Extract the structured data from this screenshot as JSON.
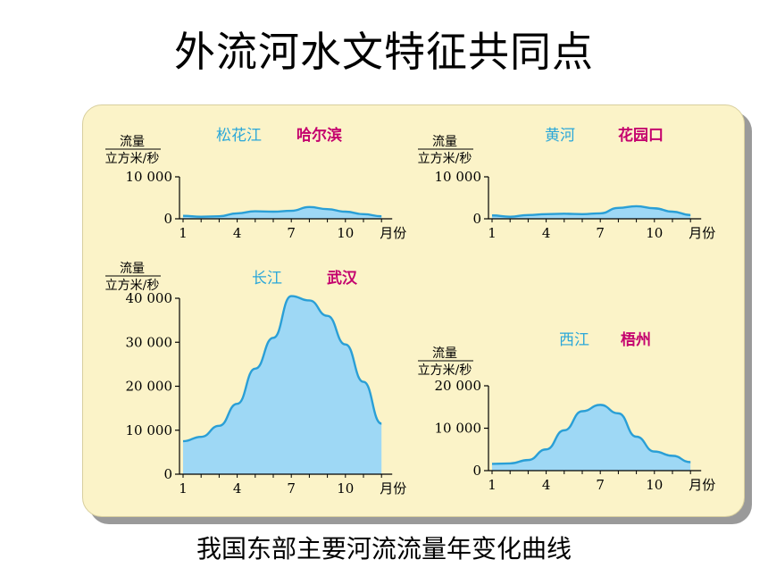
{
  "title": "外流河水文特征共同点",
  "caption": "我国东部主要河流流量年变化曲线",
  "colors": {
    "fill": "#9ed8f5",
    "line": "#2a9fd6",
    "river": "#2aa7d9",
    "station": "#c4006e",
    "panel": "#fbf3c8"
  },
  "chart_data": [
    {
      "type": "area",
      "river": "松花江",
      "station": "哈尔滨",
      "ylabel_top": "流量",
      "ylabel_bottom": "立方米/秒",
      "y_ticks": [
        "10 000",
        "0"
      ],
      "ylim": [
        0,
        10000
      ],
      "x_ticks": [
        "1",
        "4",
        "7",
        "10"
      ],
      "x_unit": "月份",
      "x": [
        1,
        2,
        3,
        4,
        5,
        6,
        7,
        8,
        9,
        10,
        11,
        12
      ],
      "values": [
        700,
        500,
        600,
        1300,
        1800,
        1700,
        1900,
        2800,
        2300,
        1700,
        1100,
        600
      ]
    },
    {
      "type": "area",
      "river": "黄河",
      "station": "花园口",
      "ylabel_top": "流量",
      "ylabel_bottom": "立方米/秒",
      "y_ticks": [
        "10 000",
        "0"
      ],
      "ylim": [
        0,
        10000
      ],
      "x_ticks": [
        "1",
        "4",
        "7",
        "10"
      ],
      "x_unit": "月份",
      "x": [
        1,
        2,
        3,
        4,
        5,
        6,
        7,
        8,
        9,
        10,
        11,
        12
      ],
      "values": [
        800,
        500,
        900,
        1100,
        1200,
        1100,
        1300,
        2600,
        3000,
        2500,
        1700,
        900
      ]
    },
    {
      "type": "area",
      "river": "长江",
      "station": "武汉",
      "ylabel_top": "流量",
      "ylabel_bottom": "立方米/秒",
      "y_ticks": [
        "40 000",
        "30 000",
        "20 000",
        "10 000",
        "0"
      ],
      "ylim": [
        0,
        40000
      ],
      "x_ticks": [
        "1",
        "4",
        "7",
        "10"
      ],
      "x_unit": "月份",
      "x": [
        1,
        2,
        3,
        4,
        5,
        6,
        7,
        8,
        9,
        10,
        11,
        12
      ],
      "values": [
        7500,
        8500,
        11000,
        16000,
        24000,
        31000,
        40500,
        39500,
        36000,
        29500,
        21000,
        11500
      ]
    },
    {
      "type": "area",
      "river": "西江",
      "station": "梧州",
      "ylabel_top": "流量",
      "ylabel_bottom": "立方米/秒",
      "y_ticks": [
        "20 000",
        "10 000",
        "0"
      ],
      "ylim": [
        0,
        20000
      ],
      "x_ticks": [
        "1",
        "4",
        "7",
        "10"
      ],
      "x_unit": "月份",
      "x": [
        1,
        2,
        3,
        4,
        5,
        6,
        7,
        8,
        9,
        10,
        11,
        12
      ],
      "values": [
        1600,
        1700,
        2500,
        5000,
        9500,
        14000,
        15500,
        13500,
        8000,
        4500,
        3500,
        2000
      ]
    }
  ]
}
